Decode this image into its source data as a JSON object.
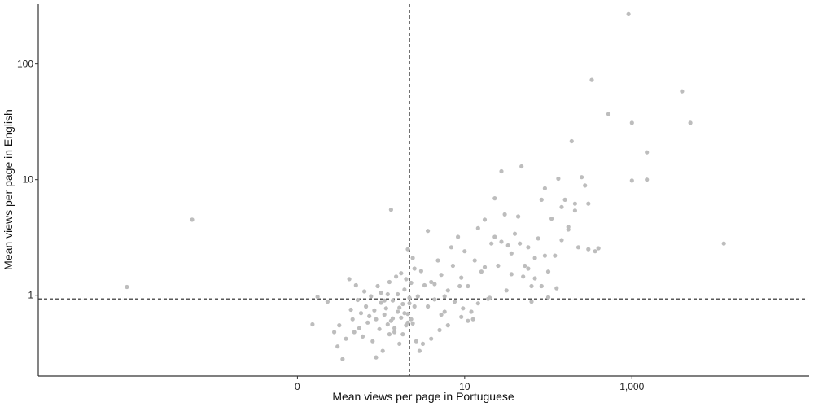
{
  "chart_data": {
    "type": "scatter",
    "title": "",
    "xlabel": "Mean views per page in Portuguese",
    "ylabel": "Mean views per page in English",
    "x_scale": "log-like",
    "y_scale": "log10",
    "xlim": [
      -1.55,
      3.06
    ],
    "ylim": [
      0.2,
      330
    ],
    "x_ticks": [
      {
        "value": 0,
        "label": "0"
      },
      {
        "value": 1,
        "label": "10"
      },
      {
        "value": 2,
        "label": "1,000"
      }
    ],
    "y_ticks": [
      {
        "value": 1,
        "label": "1"
      },
      {
        "value": 10,
        "label": "10"
      },
      {
        "value": 100,
        "label": "100"
      }
    ],
    "reference_lines": {
      "x": 0.67,
      "y": 0.93
    },
    "grid": false,
    "legend": "none",
    "point_color": "#bdbdbd",
    "axis_color": "#333333",
    "points": [
      [
        -1.02,
        1.18
      ],
      [
        -0.63,
        4.5
      ],
      [
        0.12,
        0.97
      ],
      [
        0.09,
        0.56
      ],
      [
        0.18,
        0.88
      ],
      [
        0.22,
        0.48
      ],
      [
        0.24,
        0.36
      ],
      [
        0.25,
        0.55
      ],
      [
        0.27,
        0.28
      ],
      [
        0.29,
        0.42
      ],
      [
        0.31,
        1.38
      ],
      [
        0.32,
        0.75
      ],
      [
        0.33,
        0.62
      ],
      [
        0.34,
        0.48
      ],
      [
        0.35,
        1.22
      ],
      [
        0.36,
        0.91
      ],
      [
        0.37,
        0.52
      ],
      [
        0.38,
        0.7
      ],
      [
        0.39,
        0.44
      ],
      [
        0.4,
        1.08
      ],
      [
        0.41,
        0.8
      ],
      [
        0.42,
        0.58
      ],
      [
        0.43,
        0.66
      ],
      [
        0.44,
        0.98
      ],
      [
        0.45,
        0.4
      ],
      [
        0.46,
        0.74
      ],
      [
        0.47,
        0.62
      ],
      [
        0.48,
        1.2
      ],
      [
        0.49,
        0.51
      ],
      [
        0.5,
        0.86
      ],
      [
        0.51,
        0.33
      ],
      [
        0.52,
        0.68
      ],
      [
        0.53,
        0.77
      ],
      [
        0.54,
        1.02
      ],
      [
        0.55,
        0.46
      ],
      [
        0.56,
        0.6
      ],
      [
        0.57,
        0.9
      ],
      [
        0.58,
        0.52
      ],
      [
        0.59,
        1.45
      ],
      [
        0.6,
        0.72
      ],
      [
        0.61,
        0.38
      ],
      [
        0.62,
        0.64
      ],
      [
        0.63,
        0.84
      ],
      [
        0.64,
        1.12
      ],
      [
        0.65,
        0.55
      ],
      [
        0.66,
        0.69
      ],
      [
        0.67,
        0.95
      ],
      [
        0.68,
        1.28
      ],
      [
        0.69,
        0.57
      ],
      [
        0.7,
        0.8
      ],
      [
        0.47,
        0.29
      ],
      [
        0.5,
        1.05
      ],
      [
        0.52,
        0.9
      ],
      [
        0.54,
        0.56
      ],
      [
        0.55,
        1.3
      ],
      [
        0.57,
        0.63
      ],
      [
        0.58,
        0.48
      ],
      [
        0.6,
        1.02
      ],
      [
        0.61,
        0.78
      ],
      [
        0.62,
        1.55
      ],
      [
        0.63,
        0.46
      ],
      [
        0.64,
        0.7
      ],
      [
        0.65,
        1.38
      ],
      [
        0.66,
        0.58
      ],
      [
        0.67,
        0.85
      ],
      [
        0.68,
        0.62
      ],
      [
        0.69,
        2.1
      ],
      [
        0.7,
        1.7
      ],
      [
        0.56,
        5.5
      ],
      [
        0.66,
        2.5
      ],
      [
        0.72,
        0.98
      ],
      [
        0.74,
        1.62
      ],
      [
        0.76,
        1.22
      ],
      [
        0.78,
        3.6
      ],
      [
        0.8,
        1.3
      ],
      [
        0.82,
        0.92
      ],
      [
        0.84,
        2.0
      ],
      [
        0.86,
        1.5
      ],
      [
        0.88,
        0.72
      ],
      [
        0.9,
        1.1
      ],
      [
        0.92,
        2.6
      ],
      [
        0.94,
        0.88
      ],
      [
        0.96,
        3.2
      ],
      [
        0.98,
        1.42
      ],
      [
        1.0,
        2.4
      ],
      [
        1.02,
        1.2
      ],
      [
        1.04,
        0.72
      ],
      [
        1.06,
        2.0
      ],
      [
        1.08,
        3.8
      ],
      [
        1.1,
        1.6
      ],
      [
        1.12,
        4.5
      ],
      [
        1.14,
        0.93
      ],
      [
        1.16,
        2.8
      ],
      [
        1.18,
        6.9
      ],
      [
        1.2,
        1.8
      ],
      [
        1.22,
        11.8
      ],
      [
        1.24,
        5.0
      ],
      [
        1.26,
        2.7
      ],
      [
        1.28,
        1.52
      ],
      [
        1.3,
        3.4
      ],
      [
        1.32,
        4.8
      ],
      [
        1.34,
        13.0
      ],
      [
        1.36,
        1.8
      ],
      [
        1.38,
        2.6
      ],
      [
        1.4,
        0.88
      ],
      [
        1.42,
        2.1
      ],
      [
        1.44,
        3.1
      ],
      [
        1.46,
        6.7
      ],
      [
        1.48,
        8.4
      ],
      [
        1.5,
        1.6
      ],
      [
        1.52,
        4.6
      ],
      [
        1.54,
        2.2
      ],
      [
        1.56,
        10.2
      ],
      [
        1.58,
        5.8
      ],
      [
        1.6,
        6.7
      ],
      [
        1.62,
        3.9
      ],
      [
        1.64,
        21.5
      ],
      [
        1.66,
        5.4
      ],
      [
        1.68,
        2.6
      ],
      [
        1.7,
        10.5
      ],
      [
        1.72,
        8.9
      ],
      [
        1.74,
        6.2
      ],
      [
        1.76,
        73.0
      ],
      [
        1.8,
        2.55
      ],
      [
        1.86,
        37.0
      ],
      [
        1.98,
        270.0
      ],
      [
        2.0,
        31.0
      ],
      [
        2.0,
        9.8
      ],
      [
        2.09,
        10.0
      ],
      [
        2.09,
        17.2
      ],
      [
        2.3,
        58.0
      ],
      [
        2.35,
        31.0
      ],
      [
        2.55,
        2.8
      ],
      [
        1.74,
        2.5
      ],
      [
        1.78,
        2.4
      ],
      [
        1.55,
        1.15
      ],
      [
        1.5,
        0.96
      ],
      [
        1.4,
        1.2
      ],
      [
        1.35,
        1.45
      ],
      [
        1.25,
        1.1
      ],
      [
        1.15,
        0.95
      ],
      [
        1.05,
        0.62
      ],
      [
        0.98,
        0.65
      ],
      [
        0.9,
        0.55
      ],
      [
        0.85,
        0.5
      ],
      [
        0.8,
        0.42
      ],
      [
        0.75,
        0.38
      ],
      [
        0.73,
        0.33
      ],
      [
        0.71,
        0.4
      ],
      [
        0.78,
        0.8
      ],
      [
        0.82,
        1.25
      ],
      [
        0.86,
        0.68
      ],
      [
        0.88,
        0.98
      ],
      [
        0.93,
        1.8
      ],
      [
        0.97,
        1.2
      ],
      [
        0.99,
        0.77
      ],
      [
        1.02,
        0.6
      ],
      [
        1.08,
        0.85
      ],
      [
        1.12,
        1.75
      ],
      [
        1.18,
        3.2
      ],
      [
        1.22,
        2.9
      ],
      [
        1.28,
        2.3
      ],
      [
        1.33,
        2.8
      ],
      [
        1.38,
        1.7
      ],
      [
        1.42,
        1.4
      ],
      [
        1.46,
        1.2
      ],
      [
        1.48,
        2.2
      ],
      [
        1.58,
        3.0
      ],
      [
        1.62,
        3.7
      ],
      [
        1.66,
        6.2
      ]
    ]
  }
}
